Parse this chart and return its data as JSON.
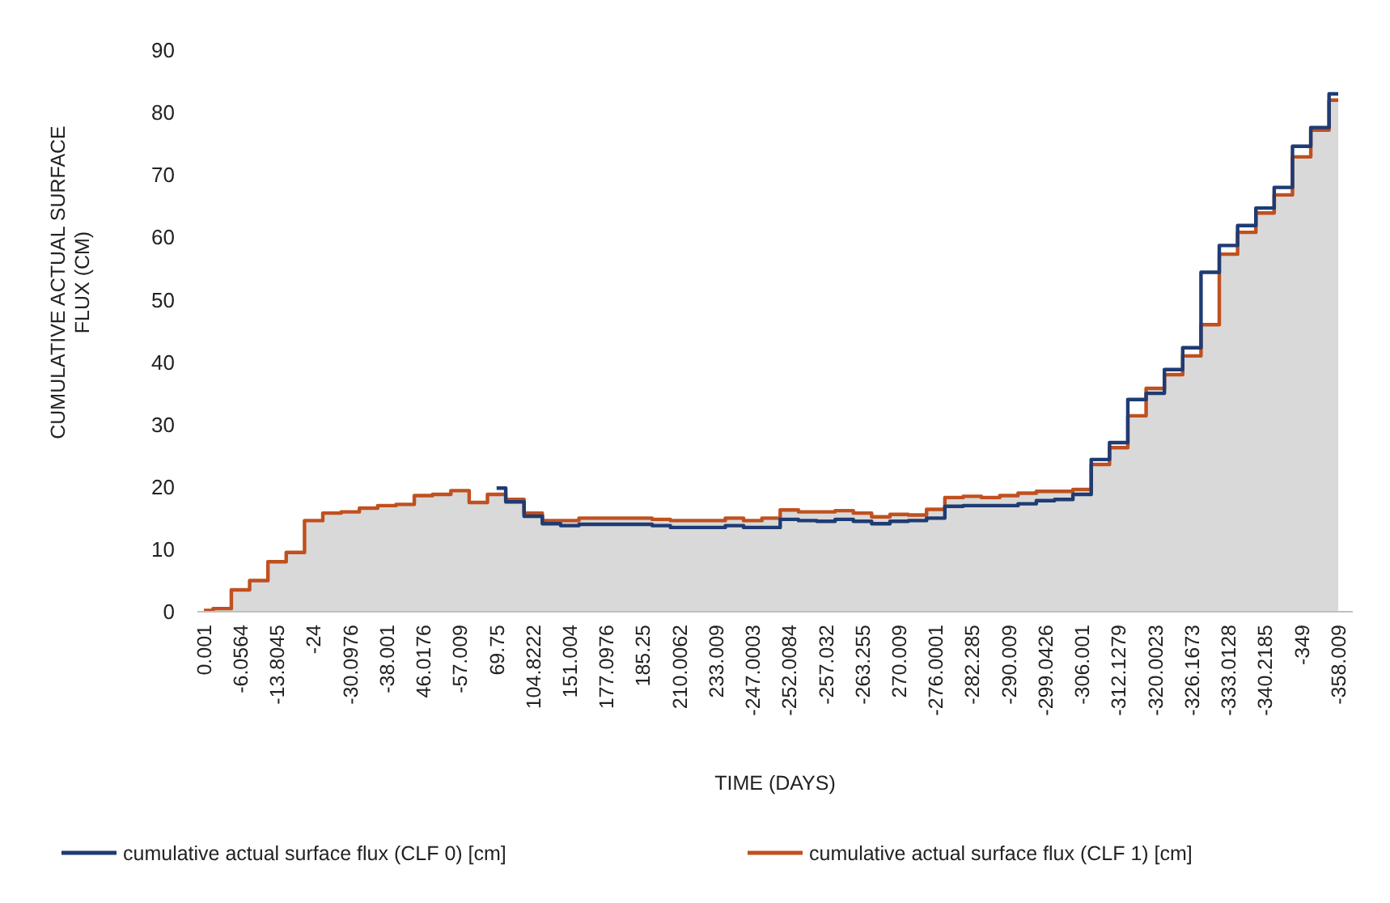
{
  "chart_data": {
    "type": "step",
    "xlabel": "TIME (DAYS)",
    "ylabel": "CUMULATIVE ACTUAL SURFACE FLUX (CM)",
    "categories": [
      "0.001",
      null,
      "-6.0564",
      null,
      "-13.8045",
      null,
      "-24",
      null,
      "-30.0976",
      null,
      "-38.001",
      null,
      "46.0176",
      null,
      "-57.009",
      null,
      "69.75",
      null,
      "104.8222",
      null,
      "151.004",
      null,
      "177.0976",
      null,
      "185.25",
      null,
      "210.0062",
      null,
      "233.009",
      null,
      "-247.0003",
      null,
      "-252.0084",
      null,
      "-257.032",
      null,
      "-263.255",
      null,
      "270.009",
      null,
      "-276.0001",
      null,
      "-282.285",
      null,
      "-290.009",
      null,
      "-299.0426",
      null,
      "-306.001",
      null,
      "-312.1279",
      null,
      "-320.0023",
      null,
      "-326.1673",
      null,
      "-333.0128",
      null,
      "-340.2185",
      null,
      "-349",
      null,
      "-358.009"
    ],
    "series": [
      {
        "name": "cumulative actual surface flux (CLF 0) [cm]",
        "color": "#1f3b73",
        "values": [
          null,
          null,
          null,
          null,
          null,
          null,
          null,
          null,
          null,
          null,
          null,
          null,
          null,
          null,
          null,
          null,
          19.8,
          17.6,
          15.3,
          14.1,
          13.8,
          14,
          14,
          14,
          14,
          13.8,
          13.5,
          13.5,
          13.5,
          13.8,
          13.5,
          13.5,
          14.8,
          14.6,
          14.5,
          14.8,
          14.5,
          14.1,
          14.5,
          14.6,
          15,
          16.9,
          17,
          17,
          17,
          17.3,
          17.8,
          18,
          18.8,
          24.4,
          27.1,
          34,
          35,
          38.8,
          42.3,
          54.4,
          58.7,
          61.9,
          64.7,
          68,
          74.6,
          77.6,
          83
        ]
      },
      {
        "type": "area",
        "name": "cumulative actual surface flux (CLF 1) [cm]",
        "color": "#c0501f",
        "values": [
          0.2,
          0.5,
          3.5,
          5,
          8,
          9.5,
          14.6,
          15.8,
          16,
          16.6,
          17,
          17.2,
          18.6,
          18.8,
          19.4,
          17.5,
          18.8,
          18,
          15.8,
          14.6,
          14.6,
          15,
          15,
          15,
          15,
          14.8,
          14.6,
          14.6,
          14.6,
          15,
          14.6,
          15,
          16.3,
          16,
          16,
          16.2,
          15.8,
          15.2,
          15.6,
          15.5,
          16.4,
          18.3,
          18.5,
          18.3,
          18.6,
          19,
          19.3,
          19.3,
          19.6,
          23.6,
          26.3,
          31.4,
          35.8,
          38,
          41,
          46,
          57.3,
          60.8,
          63.9,
          66.8,
          72.9,
          77.2,
          82
        ]
      }
    ],
    "ylim": [
      0,
      90
    ],
    "yticks": [
      0,
      10,
      20,
      30,
      40,
      50,
      60,
      70,
      80,
      90
    ],
    "legend": "bottom"
  }
}
